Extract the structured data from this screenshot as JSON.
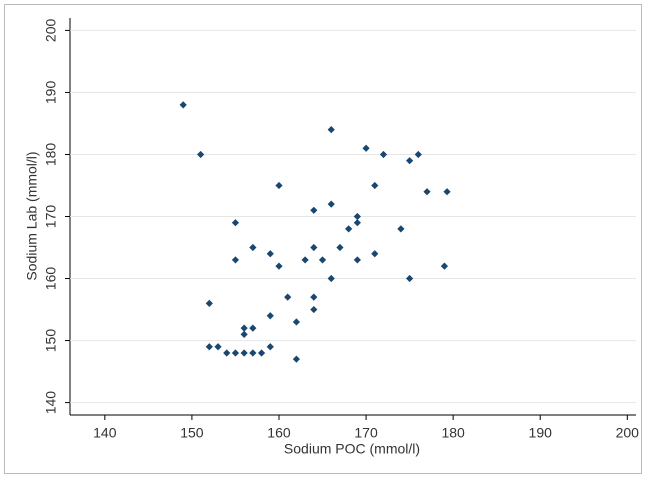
{
  "chart_data": {
    "type": "scatter",
    "x_label": "Sodium POC (mmol/l)",
    "y_label": "Sodium Lab (mmol/l)",
    "color": "#1a476f",
    "grid": true,
    "xlim": [
      136,
      201
    ],
    "ylim": [
      138,
      202
    ],
    "xticks": [
      140,
      150,
      160,
      170,
      180,
      190,
      200
    ],
    "yticks": [
      140,
      150,
      160,
      170,
      180,
      190,
      200
    ],
    "x": [
      149,
      151,
      152,
      155,
      155,
      157,
      160,
      159,
      160,
      161,
      162,
      162,
      156,
      156,
      157,
      159,
      152,
      153,
      154,
      155,
      156,
      157,
      158,
      159,
      164,
      163,
      164,
      164,
      164,
      165,
      166,
      166,
      166,
      167,
      168,
      169,
      169,
      169,
      170,
      171,
      171,
      172,
      174,
      175,
      176,
      175,
      177,
      179.3,
      179
    ],
    "values": [
      188,
      180,
      156,
      169,
      163,
      165,
      175,
      164,
      162,
      157,
      153,
      147,
      152,
      151,
      152,
      154,
      149,
      149,
      148,
      148,
      148,
      148,
      148,
      149,
      171,
      163,
      165,
      157,
      155,
      163,
      172,
      184,
      160,
      165,
      168,
      169,
      170,
      163,
      181,
      175,
      164,
      180,
      168,
      179,
      180,
      160,
      174,
      174,
      162
    ]
  }
}
